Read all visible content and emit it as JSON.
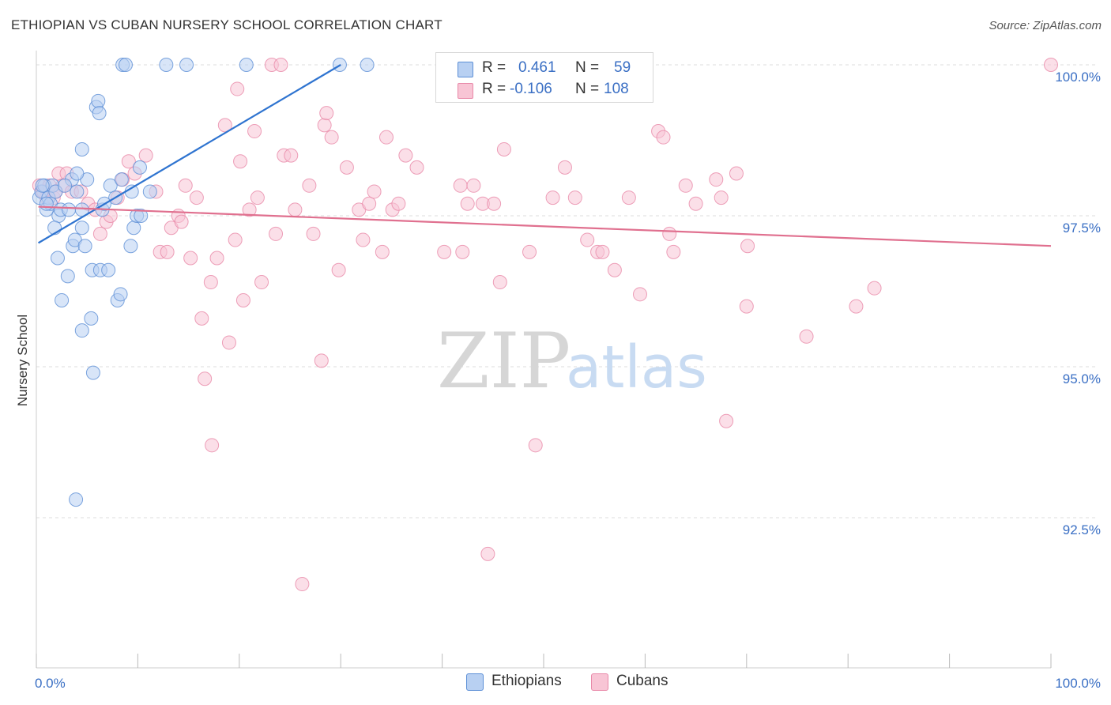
{
  "header": {
    "title": "ETHIOPIAN VS CUBAN NURSERY SCHOOL CORRELATION CHART",
    "source": "Source: ZipAtlas.com"
  },
  "watermark": {
    "zip": "ZIP",
    "atlas": "atlas"
  },
  "legend": {
    "rows": [
      {
        "r_label": "R =",
        "r_value": "0.461",
        "n_label": "N =",
        "n_value": "59"
      },
      {
        "r_label": "R =",
        "r_value": "-0.106",
        "n_label": "N =",
        "n_value": "108"
      }
    ]
  },
  "bottom_legend": {
    "items": [
      "Ethiopians",
      "Cubans"
    ]
  },
  "colors": {
    "ethiopian_fill": "#b8d0f2",
    "ethiopian_stroke": "#5c8fd6",
    "ethiopian_line": "#2f74d0",
    "cuban_fill": "#f8c5d5",
    "cuban_stroke": "#e888a8",
    "cuban_line": "#e0708f",
    "axis_label": "#3a6fc4",
    "grid": "#dcdcdc"
  },
  "chart_data": {
    "type": "scatter",
    "title": "ETHIOPIAN VS CUBAN NURSERY SCHOOL CORRELATION CHART",
    "xlabel": "",
    "ylabel": "Nursery School",
    "xlim": [
      0,
      100
    ],
    "ylim": [
      90.0,
      100.5
    ],
    "x_tick_labels": [
      "0.0%",
      "100.0%"
    ],
    "y_ticks": [
      92.5,
      95.0,
      97.5,
      100.0
    ],
    "y_tick_labels": [
      "92.5%",
      "95.0%",
      "97.5%",
      "100.0%"
    ],
    "grid": true,
    "legend_position": "top-center",
    "series": [
      {
        "name": "Ethiopians",
        "trend": {
          "x": [
            0.2,
            30.0
          ],
          "y": [
            97.05,
            100.0
          ]
        },
        "points": [
          [
            0.3,
            97.8
          ],
          [
            0.5,
            97.9
          ],
          [
            0.8,
            98.0
          ],
          [
            1.0,
            97.6
          ],
          [
            1.2,
            97.8
          ],
          [
            1.4,
            97.7
          ],
          [
            1.6,
            98.0
          ],
          [
            1.9,
            97.9
          ],
          [
            2.2,
            97.5
          ],
          [
            2.4,
            97.6
          ],
          [
            1.8,
            97.3
          ],
          [
            2.1,
            96.8
          ],
          [
            3.2,
            97.6
          ],
          [
            3.5,
            98.1
          ],
          [
            4.0,
            97.9
          ],
          [
            4.5,
            97.6
          ],
          [
            5.0,
            98.1
          ],
          [
            6.5,
            97.6
          ],
          [
            7.3,
            98.0
          ],
          [
            7.8,
            97.8
          ],
          [
            8.4,
            98.1
          ],
          [
            10.2,
            98.3
          ],
          [
            11.2,
            97.9
          ],
          [
            2.5,
            96.1
          ],
          [
            3.1,
            96.5
          ],
          [
            3.6,
            97.0
          ],
          [
            3.8,
            97.1
          ],
          [
            4.5,
            97.3
          ],
          [
            4.8,
            97.0
          ],
          [
            5.5,
            96.6
          ],
          [
            6.3,
            96.6
          ],
          [
            7.1,
            96.6
          ],
          [
            8.0,
            96.1
          ],
          [
            8.3,
            96.2
          ],
          [
            9.3,
            97.0
          ],
          [
            9.6,
            97.3
          ],
          [
            9.9,
            97.5
          ],
          [
            4.5,
            95.6
          ],
          [
            5.4,
            95.8
          ],
          [
            5.6,
            94.9
          ],
          [
            3.9,
            92.8
          ],
          [
            4.5,
            98.6
          ],
          [
            5.9,
            99.3
          ],
          [
            6.1,
            99.4
          ],
          [
            6.2,
            99.2
          ],
          [
            8.5,
            100.0
          ],
          [
            8.8,
            100.0
          ],
          [
            10.3,
            97.5
          ],
          [
            12.8,
            100.0
          ],
          [
            14.8,
            100.0
          ],
          [
            20.7,
            100.0
          ],
          [
            29.9,
            100.0
          ],
          [
            32.6,
            100.0
          ],
          [
            0.6,
            98.0
          ],
          [
            1.0,
            97.7
          ],
          [
            2.8,
            98.0
          ],
          [
            4.0,
            98.2
          ],
          [
            6.7,
            97.7
          ],
          [
            9.4,
            97.9
          ]
        ]
      },
      {
        "name": "Cubans",
        "trend": {
          "x": [
            0.2,
            100.0
          ],
          "y": [
            97.65,
            97.0
          ]
        },
        "points": [
          [
            0.3,
            98.0
          ],
          [
            0.6,
            97.9
          ],
          [
            1.0,
            97.8
          ],
          [
            1.3,
            98.0
          ],
          [
            1.7,
            97.8
          ],
          [
            2.2,
            98.2
          ],
          [
            2.6,
            98.0
          ],
          [
            3.0,
            98.2
          ],
          [
            3.5,
            97.9
          ],
          [
            4.4,
            97.9
          ],
          [
            5.1,
            97.7
          ],
          [
            5.8,
            97.6
          ],
          [
            6.3,
            97.2
          ],
          [
            6.9,
            97.4
          ],
          [
            7.3,
            97.5
          ],
          [
            8.0,
            97.8
          ],
          [
            8.5,
            98.1
          ],
          [
            9.1,
            98.4
          ],
          [
            9.7,
            98.2
          ],
          [
            10.8,
            98.5
          ],
          [
            11.8,
            97.9
          ],
          [
            12.2,
            96.9
          ],
          [
            12.9,
            96.9
          ],
          [
            13.3,
            97.3
          ],
          [
            14.0,
            97.5
          ],
          [
            14.3,
            97.4
          ],
          [
            14.7,
            98.0
          ],
          [
            15.2,
            96.8
          ],
          [
            15.8,
            97.8
          ],
          [
            16.3,
            95.8
          ],
          [
            16.6,
            94.8
          ],
          [
            17.2,
            96.4
          ],
          [
            17.3,
            93.7
          ],
          [
            17.8,
            96.8
          ],
          [
            18.6,
            99.0
          ],
          [
            19.0,
            95.4
          ],
          [
            19.6,
            97.1
          ],
          [
            19.8,
            99.6
          ],
          [
            20.1,
            98.4
          ],
          [
            20.4,
            96.1
          ],
          [
            21.0,
            97.6
          ],
          [
            21.5,
            98.9
          ],
          [
            21.8,
            97.8
          ],
          [
            22.2,
            96.4
          ],
          [
            23.2,
            100.0
          ],
          [
            23.6,
            97.2
          ],
          [
            24.1,
            100.0
          ],
          [
            24.4,
            98.5
          ],
          [
            25.1,
            98.5
          ],
          [
            25.5,
            97.6
          ],
          [
            26.2,
            91.4
          ],
          [
            26.9,
            98.0
          ],
          [
            27.3,
            97.2
          ],
          [
            28.1,
            95.1
          ],
          [
            28.4,
            99.0
          ],
          [
            28.6,
            99.2
          ],
          [
            29.1,
            98.8
          ],
          [
            29.8,
            96.6
          ],
          [
            30.6,
            98.3
          ],
          [
            31.8,
            97.6
          ],
          [
            32.2,
            97.1
          ],
          [
            32.8,
            97.7
          ],
          [
            33.3,
            97.9
          ],
          [
            34.1,
            96.9
          ],
          [
            34.5,
            98.8
          ],
          [
            35.1,
            97.6
          ],
          [
            35.7,
            97.7
          ],
          [
            36.4,
            98.5
          ],
          [
            37.5,
            98.3
          ],
          [
            40.2,
            96.9
          ],
          [
            41.8,
            98.0
          ],
          [
            42.0,
            96.9
          ],
          [
            42.5,
            97.7
          ],
          [
            43.1,
            98.0
          ],
          [
            44.0,
            97.7
          ],
          [
            44.5,
            91.9
          ],
          [
            45.1,
            97.7
          ],
          [
            45.7,
            96.4
          ],
          [
            46.1,
            98.6
          ],
          [
            48.6,
            96.9
          ],
          [
            49.2,
            93.7
          ],
          [
            50.9,
            97.8
          ],
          [
            52.1,
            98.3
          ],
          [
            53.1,
            97.8
          ],
          [
            54.3,
            97.1
          ],
          [
            55.3,
            96.9
          ],
          [
            55.8,
            96.9
          ],
          [
            57.0,
            96.6
          ],
          [
            58.4,
            97.8
          ],
          [
            59.5,
            96.2
          ],
          [
            61.3,
            98.9
          ],
          [
            61.8,
            98.8
          ],
          [
            62.4,
            97.2
          ],
          [
            62.8,
            96.9
          ],
          [
            64.0,
            98.0
          ],
          [
            65.0,
            97.7
          ],
          [
            67.0,
            98.1
          ],
          [
            67.5,
            97.8
          ],
          [
            68.0,
            94.1
          ],
          [
            69.0,
            98.2
          ],
          [
            70.0,
            96.0
          ],
          [
            70.1,
            97.0
          ],
          [
            75.9,
            95.5
          ],
          [
            80.8,
            96.0
          ],
          [
            82.6,
            96.3
          ],
          [
            100.0,
            100.0
          ],
          [
            0.7,
            97.9
          ],
          [
            1.9,
            97.9
          ]
        ]
      }
    ]
  }
}
